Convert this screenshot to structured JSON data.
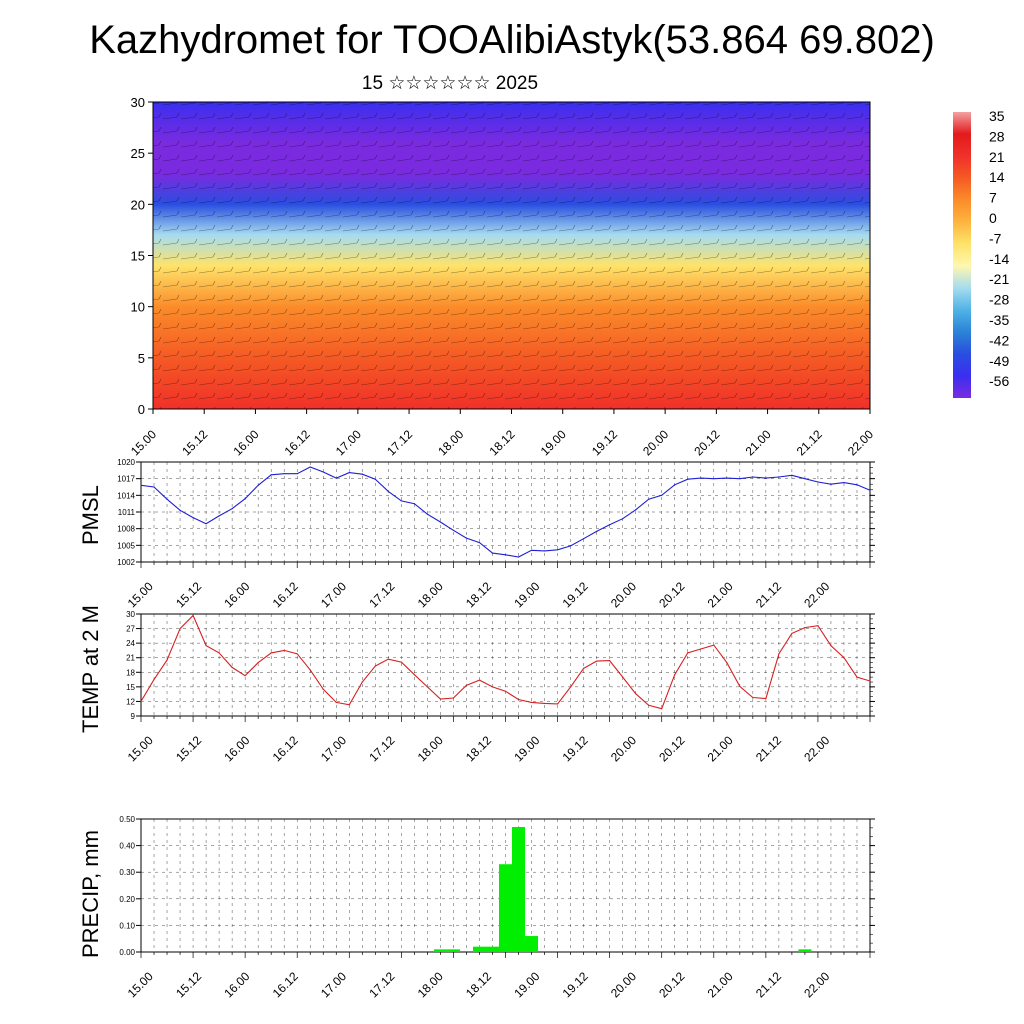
{
  "header": {
    "title": "Kazhydromet for TOOAlibiAstyk(53.864 69.802)",
    "subtitle": "15 ☆☆☆☆☆☆ 2025"
  },
  "time_labels": [
    "15.00",
    "15.12",
    "16.00",
    "16.12",
    "17.00",
    "17.12",
    "18.00",
    "18.12",
    "19.00",
    "19.12",
    "20.00",
    "20.12",
    "21.00",
    "21.12",
    "22.00"
  ],
  "chart_data": [
    {
      "id": "cross-section",
      "type": "heatmap",
      "title": "",
      "ylim": [
        0,
        30
      ],
      "yticks": [
        0,
        5,
        10,
        15,
        20,
        25,
        30
      ],
      "x": [
        "15.00",
        "15.12",
        "16.00",
        "16.12",
        "17.00",
        "17.12",
        "18.00",
        "18.12",
        "19.00",
        "19.12",
        "20.00",
        "20.12",
        "21.00",
        "21.12",
        "22.00"
      ],
      "temperature_profile": [
        {
          "height": 0,
          "value": 20
        },
        {
          "height": 5,
          "value": 14
        },
        {
          "height": 10,
          "value": 5
        },
        {
          "height": 14,
          "value": -8
        },
        {
          "height": 17,
          "value": -21
        },
        {
          "height": 20,
          "value": -42
        },
        {
          "height": 23,
          "value": -53
        },
        {
          "height": 26,
          "value": -56
        },
        {
          "height": 30,
          "value": -49
        }
      ],
      "colorbar": {
        "labels": [
          "35",
          "28",
          "21",
          "14",
          "7",
          "0",
          "-7",
          "-14",
          "-21",
          "-28",
          "-35",
          "-42",
          "-49",
          "-56"
        ],
        "colors": [
          "#f3a1a1",
          "#e31a1c",
          "#f0302a",
          "#f55a24",
          "#fb8c2a",
          "#fdb43f",
          "#fee36a",
          "#fff7b0",
          "#a6dcef",
          "#4fb3e6",
          "#2b83d6",
          "#2a4ee0",
          "#3a2ff0",
          "#7a2be0"
        ]
      }
    },
    {
      "id": "pmsl",
      "type": "line",
      "ylabel": "PMSL",
      "ylim": [
        1002,
        1020
      ],
      "yticks": [
        1002,
        1005,
        1008,
        1011,
        1014,
        1017,
        1020
      ],
      "color": "#1f1fd6",
      "x_hours": [
        0,
        3,
        6,
        9,
        12,
        15,
        18,
        21,
        24,
        27,
        30,
        33,
        36,
        39,
        42,
        45,
        48,
        51,
        54,
        57,
        60,
        63,
        66,
        69,
        72,
        75,
        78,
        81,
        84,
        87,
        90,
        93,
        96,
        99,
        102,
        105,
        108,
        111,
        114,
        117,
        120,
        123,
        126,
        129,
        132,
        135,
        138,
        141,
        144,
        147,
        150,
        153,
        156,
        159,
        162,
        165,
        168
      ],
      "values": [
        1015.8,
        1015.5,
        1013.3,
        1011.3,
        1010,
        1008.9,
        1010.3,
        1011.6,
        1013.4,
        1015.8,
        1017.7,
        1017.9,
        1017.9,
        1019.1,
        1018.2,
        1017.1,
        1018.1,
        1017.8,
        1016.9,
        1014.7,
        1013,
        1012.5,
        1010.6,
        1009.2,
        1007.7,
        1006.3,
        1005.5,
        1003.6,
        1003.3,
        1002.9,
        1004.1,
        1004,
        1004.2,
        1004.9,
        1006.2,
        1007.5,
        1008.7,
        1009.8,
        1011.4,
        1013.3,
        1014,
        1015.9,
        1016.9,
        1017.1,
        1017,
        1017.1,
        1017,
        1017.3,
        1017.1,
        1017.3,
        1017.6,
        1017,
        1016.4,
        1016,
        1016.3,
        1015.9,
        1014.9
      ]
    },
    {
      "id": "temp2m",
      "type": "line",
      "ylabel": "TEMP at 2 M",
      "ylim": [
        9,
        30
      ],
      "yticks": [
        9,
        12,
        15,
        18,
        21,
        24,
        27,
        30
      ],
      "color": "#d62020",
      "x_hours": [
        0,
        3,
        6,
        9,
        12,
        15,
        18,
        21,
        24,
        27,
        30,
        33,
        36,
        39,
        42,
        45,
        48,
        51,
        54,
        57,
        60,
        63,
        66,
        69,
        72,
        75,
        78,
        81,
        84,
        87,
        90,
        93,
        96,
        99,
        102,
        105,
        108,
        111,
        114,
        117,
        120,
        123,
        126,
        129,
        132,
        135,
        138,
        141,
        144,
        147,
        150,
        153,
        156,
        159,
        162,
        165,
        168
      ],
      "values": [
        12,
        16.5,
        20.5,
        27,
        29.7,
        23.5,
        22,
        19,
        17.3,
        20,
        22,
        22.5,
        21.8,
        18.5,
        14.5,
        11.8,
        11.3,
        16,
        19.3,
        20.7,
        20.1,
        17.5,
        15,
        12.5,
        12.7,
        15.3,
        16.4,
        15,
        14.1,
        12.4,
        11.8,
        11.6,
        11.5,
        15,
        18.8,
        20.3,
        20.4,
        17,
        13.6,
        11.2,
        10.5,
        17.5,
        22,
        22.8,
        23.6,
        20,
        15.1,
        12.8,
        12.6,
        21.8,
        26,
        27.2,
        27.6,
        23.5,
        21,
        17,
        16.2
      ]
    },
    {
      "id": "precip",
      "type": "bar",
      "ylabel": "PRECIP, mm",
      "ylim": [
        0,
        0.5
      ],
      "yticks": [
        "0.00",
        "0.10",
        "0.20",
        "0.30",
        "0.40",
        "0.50"
      ],
      "color": "#00ee00",
      "bars": [
        {
          "hour": 69,
          "value": 0.01
        },
        {
          "hour": 72,
          "value": 0.01
        },
        {
          "hour": 78,
          "value": 0.02
        },
        {
          "hour": 81,
          "value": 0.02
        },
        {
          "hour": 84,
          "value": 0.33
        },
        {
          "hour": 87,
          "value": 0.47
        },
        {
          "hour": 90,
          "value": 0.06
        },
        {
          "hour": 153,
          "value": 0.01
        }
      ]
    }
  ]
}
